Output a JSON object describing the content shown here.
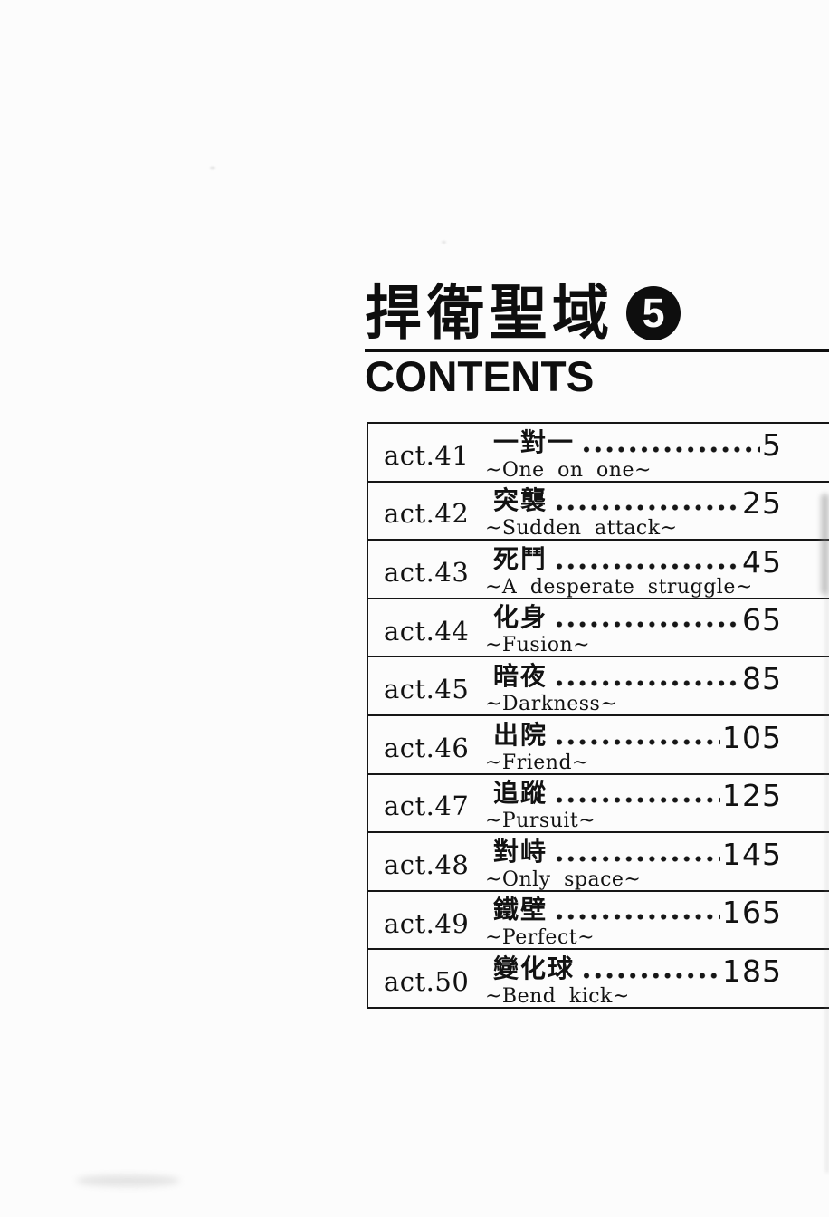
{
  "header": {
    "series_title": "捍衛聖域",
    "volume_number": "5",
    "contents_heading": "CONTENTS"
  },
  "toc": {
    "entries": [
      {
        "act": "act.41",
        "title": "一對一",
        "page": "5",
        "subtitle": "~One on one~"
      },
      {
        "act": "act.42",
        "title": "突襲",
        "page": "25",
        "subtitle": "~Sudden attack~"
      },
      {
        "act": "act.43",
        "title": "死鬥",
        "page": "45",
        "subtitle": "~A desperate struggle~"
      },
      {
        "act": "act.44",
        "title": "化身",
        "page": "65",
        "subtitle": "~Fusion~"
      },
      {
        "act": "act.45",
        "title": "暗夜",
        "page": "85",
        "subtitle": "~Darkness~"
      },
      {
        "act": "act.46",
        "title": "出院",
        "page": "105",
        "subtitle": "~Friend~"
      },
      {
        "act": "act.47",
        "title": "追蹤",
        "page": "125",
        "subtitle": "~Pursuit~"
      },
      {
        "act": "act.48",
        "title": "對峙",
        "page": "145",
        "subtitle": "~Only space~"
      },
      {
        "act": "act.49",
        "title": "鐵壁",
        "page": "165",
        "subtitle": "~Perfect~"
      },
      {
        "act": "act.50",
        "title": "變化球",
        "page": "185",
        "subtitle": "~Bend kick~"
      }
    ]
  },
  "colors": {
    "ink": "#121212",
    "paper": "#fcfcfc"
  }
}
